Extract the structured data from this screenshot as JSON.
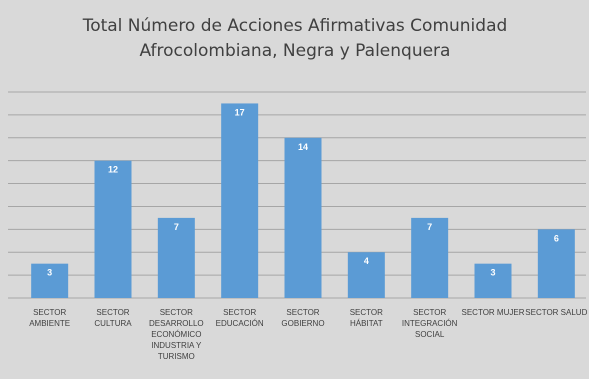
{
  "chart_data": {
    "type": "bar",
    "title": "Total Número de Acciones Afirmativas Comunidad Afrocolombiana, Negra y Palenquera",
    "categories": [
      "SECTOR AMBIENTE",
      "SECTOR CULTURA",
      "SECTOR DESARROLLO ECONÓMICO INDUSTRIA Y TURISMO",
      "SECTOR EDUCACIÓN",
      "SECTOR GOBIERNO",
      "SECTOR HÁBITAT",
      "SECTOR INTEGRACIÓN SOCIAL",
      "SECTOR MUJER",
      "SECTOR SALUD"
    ],
    "values": [
      3,
      12,
      7,
      17,
      14,
      4,
      7,
      3,
      6
    ],
    "color": "#5b9bd5",
    "ylim": [
      0,
      18
    ],
    "yticks": [
      0,
      2,
      4,
      6,
      8,
      10,
      12,
      14,
      16,
      18
    ],
    "grid": true
  }
}
